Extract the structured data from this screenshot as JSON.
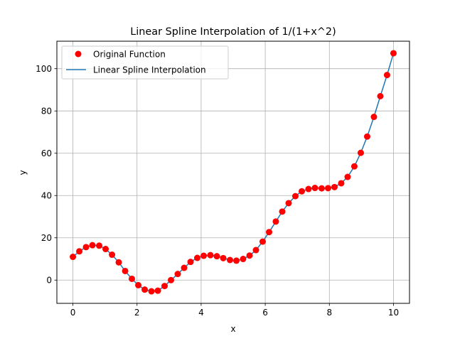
{
  "chart_data": {
    "type": "line",
    "title": "Linear Spline Interpolation of 1/(1+x^2)",
    "xlabel": "x",
    "ylabel": "y",
    "xlim": [
      -0.5,
      10.5
    ],
    "ylim": [
      -11,
      113
    ],
    "xticks": [
      0,
      2,
      4,
      6,
      8,
      10
    ],
    "xtick_labels": [
      "0",
      "2",
      "4",
      "6",
      "8",
      "10"
    ],
    "yticks": [
      0,
      20,
      40,
      60,
      80,
      100
    ],
    "ytick_labels": [
      "0",
      "20",
      "40",
      "60",
      "80",
      "100"
    ],
    "grid": true,
    "legend_position": "upper-left",
    "series": [
      {
        "name": "Original Function",
        "kind": "scatter",
        "color": "#ff0000",
        "x": [
          0.0,
          0.2,
          0.41,
          0.61,
          0.82,
          1.02,
          1.22,
          1.43,
          1.63,
          1.84,
          2.04,
          2.24,
          2.45,
          2.65,
          2.86,
          3.06,
          3.27,
          3.47,
          3.67,
          3.88,
          4.08,
          4.29,
          4.49,
          4.69,
          4.9,
          5.1,
          5.31,
          5.51,
          5.71,
          5.92,
          6.12,
          6.33,
          6.53,
          6.73,
          6.94,
          7.14,
          7.35,
          7.55,
          7.76,
          7.96,
          8.16,
          8.37,
          8.57,
          8.78,
          8.98,
          9.18,
          9.39,
          9.59,
          9.8,
          10.0
        ],
        "y": [
          11.0,
          13.6,
          15.6,
          16.5,
          16.3,
          14.7,
          12.0,
          8.4,
          4.3,
          0.6,
          -2.4,
          -4.5,
          -5.3,
          -5.0,
          -2.8,
          0.0,
          2.9,
          5.8,
          8.6,
          10.5,
          11.5,
          11.8,
          11.3,
          10.4,
          9.5,
          9.2,
          10.0,
          11.6,
          14.2,
          18.2,
          22.7,
          27.7,
          32.4,
          36.4,
          39.7,
          42.0,
          43.1,
          43.6,
          43.4,
          43.5,
          44.0,
          45.8,
          48.8,
          53.8,
          60.2,
          67.9,
          77.2,
          87.0,
          97.0,
          107.3
        ]
      },
      {
        "name": "Linear Spline Interpolation",
        "kind": "line",
        "color": "#1f77b4"
      }
    ]
  }
}
